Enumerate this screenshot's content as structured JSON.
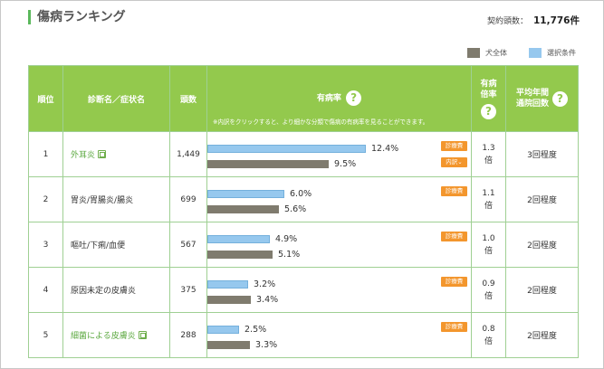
{
  "header": {
    "title": "傷病ランキング",
    "count_label": "契約頭数：",
    "count_value": "11,776件"
  },
  "legend": {
    "all_label": "犬全体",
    "selected_label": "選択条件",
    "colors": {
      "all": "#7f7b6e",
      "selected": "#96c8ee"
    }
  },
  "columns": {
    "rank": "順位",
    "name": "診断名／症状名",
    "heads": "頭数",
    "ill_rate": "有病率",
    "ill_rate_note": "※内訳をクリックすると、より細かな分類で傷病の有病率を見ることができます。",
    "odds_line1": "有病",
    "odds_line2": "倍率",
    "avg_line1": "平均年間",
    "avg_line2": "通院回数"
  },
  "bar_scale_max_percent": 14.5,
  "rows": [
    {
      "rank": "1",
      "name": "外耳炎",
      "is_link": true,
      "heads": "1,449",
      "selected_pct": 12.4,
      "selected_label": "12.4%",
      "all_pct": 9.5,
      "all_label": "9.5%",
      "badge": "診療費",
      "breakdown": "内訳",
      "odds": "1.3",
      "odds_unit": "倍",
      "avg": "3回程度"
    },
    {
      "rank": "2",
      "name": "胃炎/胃腸炎/腸炎",
      "is_link": false,
      "heads": "699",
      "selected_pct": 6.0,
      "selected_label": "6.0%",
      "all_pct": 5.6,
      "all_label": "5.6%",
      "badge": "診療費",
      "breakdown": "",
      "odds": "1.1",
      "odds_unit": "倍",
      "avg": "2回程度"
    },
    {
      "rank": "3",
      "name": "嘔吐/下痢/血便",
      "is_link": false,
      "heads": "567",
      "selected_pct": 4.9,
      "selected_label": "4.9%",
      "all_pct": 5.1,
      "all_label": "5.1%",
      "badge": "診療費",
      "breakdown": "",
      "odds": "1.0",
      "odds_unit": "倍",
      "avg": "2回程度"
    },
    {
      "rank": "4",
      "name": "原因未定の皮膚炎",
      "is_link": false,
      "heads": "375",
      "selected_pct": 3.2,
      "selected_label": "3.2%",
      "all_pct": 3.4,
      "all_label": "3.4%",
      "badge": "診療費",
      "breakdown": "",
      "odds": "0.9",
      "odds_unit": "倍",
      "avg": "2回程度"
    },
    {
      "rank": "5",
      "name": "細菌による皮膚炎",
      "is_link": true,
      "heads": "288",
      "selected_pct": 2.5,
      "selected_label": "2.5%",
      "all_pct": 3.3,
      "all_label": "3.3%",
      "badge": "診療費",
      "breakdown": "",
      "odds": "0.8",
      "odds_unit": "倍",
      "avg": "2回程度"
    }
  ]
}
